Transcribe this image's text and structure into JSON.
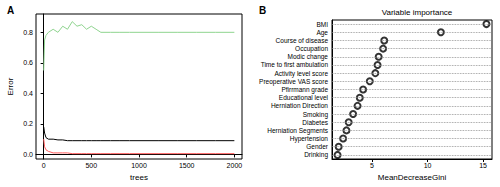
{
  "chart_data": [
    {
      "type": "line",
      "title": "A",
      "x_label": "trees",
      "y_label": "Error",
      "x": [
        1,
        10,
        25,
        50,
        100,
        150,
        200,
        250,
        300,
        350,
        400,
        450,
        500,
        550,
        600,
        700,
        800,
        900,
        1000,
        1200,
        1400,
        1600,
        1800,
        2000
      ],
      "series": [
        {
          "color": "#000000",
          "values": [
            0.18,
            0.14,
            0.11,
            0.1,
            0.1,
            0.095,
            0.095,
            0.09,
            0.09,
            0.09,
            0.09,
            0.09,
            0.09,
            0.09,
            0.09,
            0.09,
            0.09,
            0.09,
            0.09,
            0.09,
            0.09,
            0.09,
            0.09,
            0.09
          ]
        },
        {
          "color": "#ff5a5a",
          "values": [
            0.1,
            0.05,
            0.03,
            0.02,
            0.01,
            0.01,
            0.01,
            0.01,
            0.005,
            0.005,
            0.005,
            0.005,
            0.005,
            0.005,
            0.005,
            0.005,
            0.005,
            0.005,
            0.005,
            0.005,
            0.005,
            0.005,
            0.005,
            0.005
          ]
        },
        {
          "color": "#8fd48f",
          "values": [
            0.55,
            0.75,
            0.78,
            0.8,
            0.82,
            0.8,
            0.84,
            0.82,
            0.87,
            0.84,
            0.85,
            0.82,
            0.84,
            0.82,
            0.8,
            0.8,
            0.8,
            0.8,
            0.8,
            0.8,
            0.8,
            0.8,
            0.8,
            0.8
          ]
        }
      ],
      "xlim": [
        -80,
        2080
      ],
      "xticks": [
        0,
        500,
        1000,
        1500,
        2000
      ],
      "ylim": [
        -0.03,
        0.92
      ],
      "yticks": [
        {
          "value": 0,
          "label": "0.0"
        },
        0.2,
        0.4,
        0.6,
        0.8
      ],
      "grid": false
    },
    {
      "type": "dot",
      "title": "Variable importance",
      "annotations": [
        "B"
      ],
      "x_label": "MeanDecreaseGini",
      "categories": [
        "BMI",
        "Age",
        "Course of disease",
        "Occupation",
        "Modic change",
        "Time to first ambulation",
        "Activity level score",
        "Preoperative VAS score",
        "Pfirrmann grade",
        "Educational level",
        "Herniation Direction",
        "Smoking",
        "Diabetes",
        "Herniation Segments",
        "Hypertension",
        "Gender",
        "Drinking"
      ],
      "values": [
        15.3,
        11.2,
        6.1,
        6.0,
        5.6,
        5.5,
        5.3,
        4.8,
        4.2,
        3.9,
        3.7,
        3.3,
        2.9,
        2.7,
        2.4,
        2.0,
        1.9
      ],
      "color": "#000000",
      "marker": "open_circle",
      "xlim": [
        1.4,
        15.8
      ],
      "xticks": [
        5,
        10,
        15
      ],
      "grid": true
    }
  ]
}
